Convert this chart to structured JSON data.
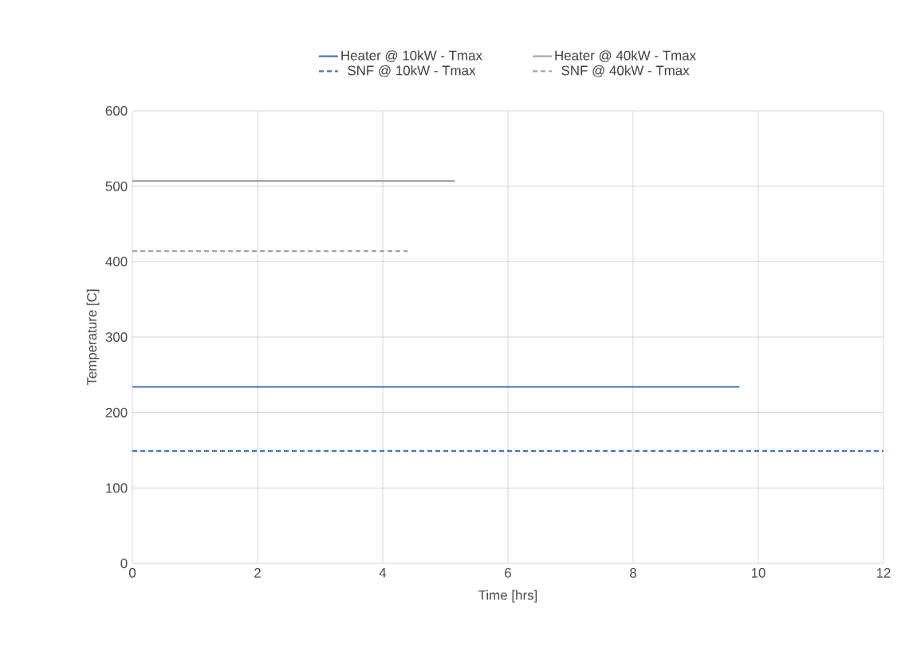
{
  "chart_data": {
    "type": "line",
    "xlabel": "Time [hrs]",
    "ylabel": "Temperature [C]",
    "series": [
      {
        "name": "Heater @ 10kW - Tmax",
        "color": "#4472c4",
        "x": [
          0,
          9.7
        ],
        "values": [
          234,
          234
        ],
        "line_style": "solid"
      },
      {
        "name": "Heater @ 40kW - Tmax",
        "color": "#a5a5a5",
        "x": [
          0,
          5.15
        ],
        "values": [
          507,
          507
        ],
        "line_style": "solid"
      },
      {
        "name": "SNF @ 10kW - Tmax",
        "color": "#4472c4",
        "x": [
          0,
          12
        ],
        "values": [
          149,
          149
        ],
        "line_style": "dashed"
      },
      {
        "name": "SNF @ 40kW - Tmax",
        "color": "#a5a5a5",
        "x": [
          0,
          4.4
        ],
        "values": [
          414,
          414
        ],
        "line_style": "dashed"
      }
    ],
    "xlim": [
      0,
      12
    ],
    "xticks": [
      0,
      2,
      4,
      6,
      8,
      10,
      12
    ],
    "ylim": [
      0,
      600
    ],
    "yticks": [
      0,
      100,
      200,
      300,
      400,
      500,
      600
    ],
    "grid": true,
    "legend": "top",
    "marker": "none"
  }
}
